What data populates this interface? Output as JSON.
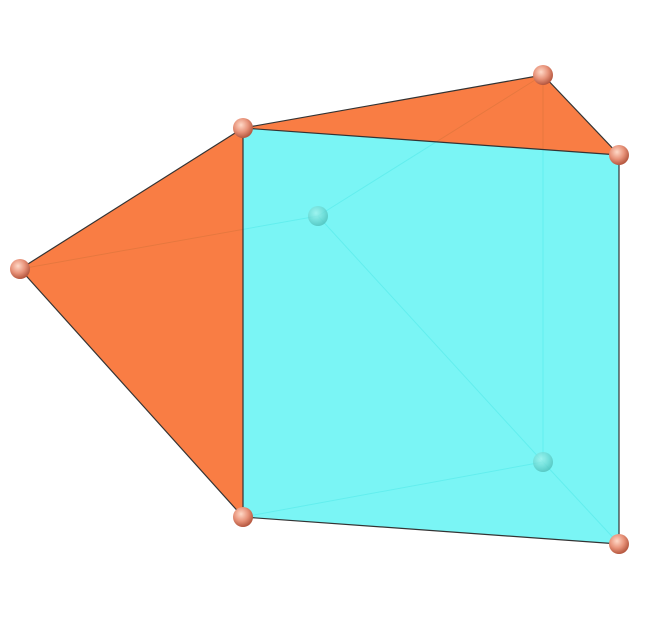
{
  "colors": {
    "background": "#ffffff",
    "square_face": "#63f3f3",
    "triangle_face": "#f86b2a",
    "edge": "#333333",
    "hidden_edge": "#3fbfbf",
    "vertex": "#e8937a"
  },
  "shape": {
    "vertices": [
      {
        "id": "v1",
        "visible": true
      },
      {
        "id": "v2",
        "visible": true
      },
      {
        "id": "v3",
        "visible": true
      },
      {
        "id": "v4",
        "visible": true
      },
      {
        "id": "v5",
        "visible": true
      },
      {
        "id": "v6",
        "visible": true
      },
      {
        "id": "v7",
        "visible": false
      },
      {
        "id": "v8",
        "visible": false
      }
    ],
    "faces": [
      {
        "name": "left-triangle-face",
        "kind": "triangle"
      },
      {
        "name": "top-triangle-face",
        "kind": "triangle"
      },
      {
        "name": "front-square-face",
        "kind": "square"
      }
    ]
  }
}
